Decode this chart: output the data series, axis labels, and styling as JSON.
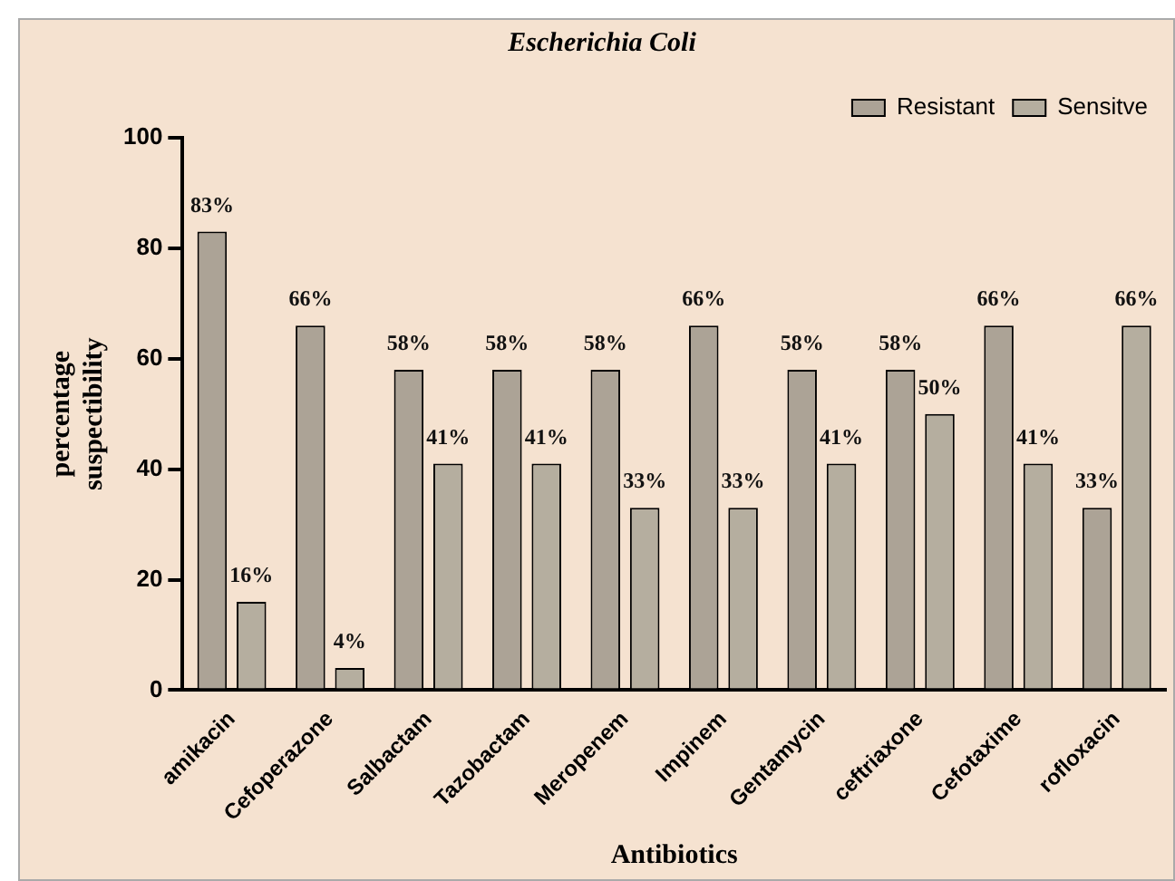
{
  "chart_data": {
    "type": "bar",
    "title": "Escherichia Coli",
    "xlabel": "Antibiotics",
    "ylabel": "percentage suspectibility",
    "categories": [
      "amikacin",
      "Cefoperazone",
      "Salbactam",
      "Tazobactam",
      "Meropenem",
      "Impinem",
      "Gentamycin",
      "ceftriaxone",
      "Cefotaxime",
      "rofloxacin"
    ],
    "series": [
      {
        "name": "Resistant",
        "color": "#aca396",
        "values": [
          83,
          66,
          58,
          58,
          58,
          66,
          58,
          58,
          66,
          33
        ],
        "value_labels": [
          "83%",
          "66%",
          "58%",
          "58%",
          "58%",
          "66%",
          "58%",
          "58%",
          "66%",
          "33%"
        ]
      },
      {
        "name": "Sensitve",
        "color": "#b5ae9f",
        "values": [
          16,
          4,
          41,
          41,
          33,
          33,
          41,
          50,
          41,
          66
        ],
        "value_labels": [
          "16%",
          "4%",
          "41%",
          "41%",
          "33%",
          "33%",
          "41%",
          "50%",
          "41%",
          "66%"
        ]
      }
    ],
    "ylim": [
      0,
      100
    ],
    "yticks": [
      0,
      20,
      40,
      60,
      80,
      100
    ],
    "grid": false,
    "legend": "top right"
  }
}
